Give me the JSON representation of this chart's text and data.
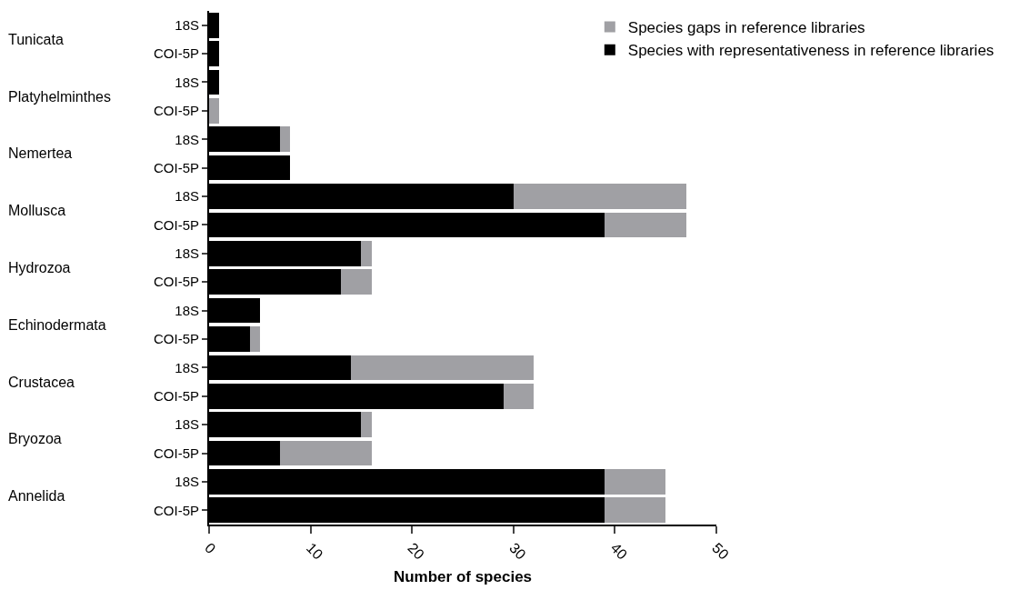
{
  "chart_data": {
    "type": "bar",
    "orientation": "horizontal",
    "stacked": true,
    "xlabel": "Number of species",
    "categories": [
      "18S",
      "COI-5P",
      "18S",
      "COI-5P",
      "18S",
      "COI-5P",
      "18S",
      "COI-5P",
      "18S",
      "COI-5P",
      "18S",
      "COI-5P",
      "18S",
      "COI-5P",
      "18S",
      "COI-5P",
      "18S",
      "COI-5P"
    ],
    "annotations": [
      "Tunicata",
      "Platyhelminthes",
      "Nemertea",
      "Mollusca",
      "Hydrozoa",
      "Echinodermata",
      "Crustacea",
      "Bryozoa",
      "Annelida"
    ],
    "series": [
      {
        "name": "Species with representativeness in reference libraries",
        "color": "#000000",
        "values": [
          1,
          1,
          1,
          0,
          7,
          8,
          30,
          39,
          15,
          13,
          5,
          4,
          14,
          29,
          15,
          7,
          39,
          39
        ]
      },
      {
        "name": "Species gaps in reference libraries",
        "color": "#a0a0a4",
        "values": [
          0,
          0,
          0,
          1,
          1,
          0,
          17,
          8,
          1,
          3,
          0,
          1,
          18,
          3,
          1,
          9,
          6,
          6
        ]
      }
    ],
    "xlim": [
      0,
      50
    ],
    "xticks": [
      0,
      10,
      20,
      30,
      40,
      50
    ],
    "grid": false,
    "legend": "top right"
  }
}
